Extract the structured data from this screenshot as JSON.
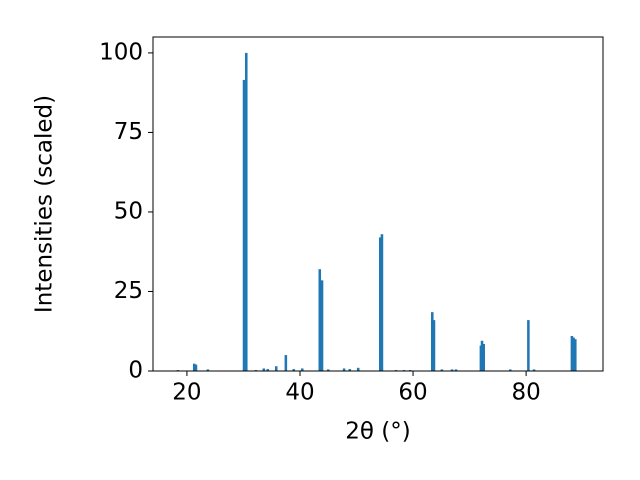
{
  "chart_data": {
    "type": "bar",
    "x_label": "2θ (°)",
    "y_label": "Intensities (scaled)",
    "x": [
      18.4,
      21.3,
      21.6,
      23.7,
      30.1,
      30.5,
      32.2,
      33.6,
      34.3,
      35.8,
      37.5,
      38.9,
      40.4,
      43.5,
      43.9,
      45.0,
      47.8,
      48.8,
      50.3,
      54.2,
      54.5,
      57.0,
      58.4,
      59.5,
      63.4,
      63.7,
      65.1,
      66.9,
      67.6,
      72.0,
      72.2,
      72.5,
      77.2,
      80.4,
      81.4,
      88.1,
      88.4,
      88.7
    ],
    "values": [
      0.3,
      2.3,
      2.0,
      0.5,
      91.5,
      100,
      0.3,
      0.8,
      0.6,
      1.5,
      5,
      0.6,
      0.8,
      32,
      28.5,
      0.5,
      0.8,
      0.6,
      1,
      42,
      43,
      0.3,
      0.3,
      0.3,
      18.5,
      16,
      0.5,
      0.5,
      0.5,
      8,
      9.5,
      8.5,
      0.5,
      16,
      0.5,
      11,
      10.5,
      10
    ],
    "color": "#1f77b4",
    "xlim": [
      14,
      93.6
    ],
    "xticks": [
      20,
      40,
      60,
      80
    ],
    "ylim": [
      0,
      105
    ],
    "yticks": [
      0,
      25,
      50,
      75,
      100
    ]
  }
}
